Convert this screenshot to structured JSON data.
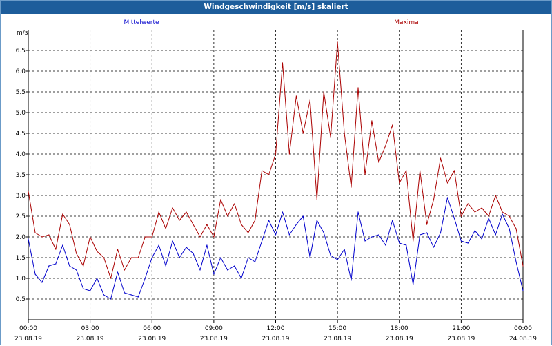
{
  "window": {
    "title": "Windgeschwindigkeit [m/s] skaliert"
  },
  "chart_data": {
    "type": "line",
    "ylabel": "m/s",
    "ylim": [
      0.0,
      7.0
    ],
    "yticks": [
      "0.5",
      "1.0",
      "1.5",
      "2.0",
      "2.5",
      "3.0",
      "3.5",
      "4.0",
      "4.5",
      "5.0",
      "5.5",
      "6.0",
      "6.5"
    ],
    "x_start": "23.08.19 00:00",
    "x_end": "24.08.19 00:00",
    "xticks": [
      {
        "time": "00:00",
        "date": "23.08.19"
      },
      {
        "time": "03:00",
        "date": "23.08.19"
      },
      {
        "time": "06:00",
        "date": "23.08.19"
      },
      {
        "time": "09:00",
        "date": "23.08.19"
      },
      {
        "time": "12:00",
        "date": "23.08.19"
      },
      {
        "time": "15:00",
        "date": "23.08.19"
      },
      {
        "time": "18:00",
        "date": "23.08.19"
      },
      {
        "time": "21:00",
        "date": "23.08.19"
      },
      {
        "time": "00:00",
        "date": "24.08.19"
      }
    ],
    "grid": true,
    "series": [
      {
        "name": "Mittelwerte",
        "color": "#0000cc",
        "x": [
          "23.08.19 00:00",
          "23.08.19 00:20",
          "23.08.19 00:40",
          "23.08.19 01:00",
          "23.08.19 01:20",
          "23.08.19 01:40",
          "23.08.19 02:00",
          "23.08.19 02:20",
          "23.08.19 02:40",
          "23.08.19 03:00",
          "23.08.19 03:20",
          "23.08.19 03:40",
          "23.08.19 04:00",
          "23.08.19 04:20",
          "23.08.19 04:40",
          "23.08.19 05:00",
          "23.08.19 05:20",
          "23.08.19 05:40",
          "23.08.19 06:00",
          "23.08.19 06:20",
          "23.08.19 06:40",
          "23.08.19 07:00",
          "23.08.19 07:20",
          "23.08.19 07:40",
          "23.08.19 08:00",
          "23.08.19 08:20",
          "23.08.19 08:40",
          "23.08.19 09:00",
          "23.08.19 09:20",
          "23.08.19 09:40",
          "23.08.19 10:00",
          "23.08.19 10:20",
          "23.08.19 10:40",
          "23.08.19 11:00",
          "23.08.19 11:20",
          "23.08.19 11:40",
          "23.08.19 12:00",
          "23.08.19 12:20",
          "23.08.19 12:40",
          "23.08.19 13:00",
          "23.08.19 13:20",
          "23.08.19 13:40",
          "23.08.19 14:00",
          "23.08.19 14:20",
          "23.08.19 14:40",
          "23.08.19 15:00",
          "23.08.19 15:20",
          "23.08.19 15:40",
          "23.08.19 16:00",
          "23.08.19 16:20",
          "23.08.19 16:40",
          "23.08.19 17:00",
          "23.08.19 17:20",
          "23.08.19 17:40",
          "23.08.19 18:00",
          "23.08.19 18:20",
          "23.08.19 18:40",
          "23.08.19 19:00",
          "23.08.19 19:20",
          "23.08.19 19:40",
          "23.08.19 20:00",
          "23.08.19 20:20",
          "23.08.19 20:40",
          "23.08.19 21:00",
          "23.08.19 21:20",
          "23.08.19 21:40",
          "23.08.19 22:00",
          "23.08.19 22:20",
          "23.08.19 22:40",
          "23.08.19 23:00",
          "23.08.19 23:20",
          "23.08.19 23:40",
          "24.08.19 00:00"
        ],
        "values": [
          1.95,
          1.1,
          0.9,
          1.3,
          1.35,
          1.8,
          1.3,
          1.2,
          0.75,
          0.7,
          1.0,
          0.6,
          0.5,
          1.15,
          0.65,
          0.6,
          0.55,
          1.0,
          1.5,
          1.8,
          1.3,
          1.9,
          1.5,
          1.75,
          1.6,
          1.2,
          1.8,
          1.1,
          1.5,
          1.2,
          1.3,
          1.0,
          1.5,
          1.4,
          1.9,
          2.4,
          2.05,
          2.6,
          2.05,
          2.3,
          2.5,
          1.5,
          2.4,
          2.1,
          1.55,
          1.45,
          1.7,
          0.95,
          2.6,
          1.9,
          2.0,
          2.05,
          1.8,
          2.4,
          1.85,
          1.8,
          0.85,
          2.05,
          2.1,
          1.75,
          2.1,
          2.95,
          2.45,
          1.9,
          1.85,
          2.15,
          1.95,
          2.45,
          2.05,
          2.55,
          2.2,
          1.4,
          0.7
        ]
      },
      {
        "name": "Maxima",
        "color": "#aa0000",
        "x": [
          "23.08.19 00:00",
          "23.08.19 00:20",
          "23.08.19 00:40",
          "23.08.19 01:00",
          "23.08.19 01:20",
          "23.08.19 01:40",
          "23.08.19 02:00",
          "23.08.19 02:20",
          "23.08.19 02:40",
          "23.08.19 03:00",
          "23.08.19 03:20",
          "23.08.19 03:40",
          "23.08.19 04:00",
          "23.08.19 04:20",
          "23.08.19 04:40",
          "23.08.19 05:00",
          "23.08.19 05:20",
          "23.08.19 05:40",
          "23.08.19 06:00",
          "23.08.19 06:20",
          "23.08.19 06:40",
          "23.08.19 07:00",
          "23.08.19 07:20",
          "23.08.19 07:40",
          "23.08.19 08:00",
          "23.08.19 08:20",
          "23.08.19 08:40",
          "23.08.19 09:00",
          "23.08.19 09:20",
          "23.08.19 09:40",
          "23.08.19 10:00",
          "23.08.19 10:20",
          "23.08.19 10:40",
          "23.08.19 11:00",
          "23.08.19 11:20",
          "23.08.19 11:40",
          "23.08.19 12:00",
          "23.08.19 12:20",
          "23.08.19 12:40",
          "23.08.19 13:00",
          "23.08.19 13:20",
          "23.08.19 13:40",
          "23.08.19 14:00",
          "23.08.19 14:20",
          "23.08.19 14:40",
          "23.08.19 15:00",
          "23.08.19 15:20",
          "23.08.19 15:40",
          "23.08.19 16:00",
          "23.08.19 16:20",
          "23.08.19 16:40",
          "23.08.19 17:00",
          "23.08.19 17:20",
          "23.08.19 17:40",
          "23.08.19 18:00",
          "23.08.19 18:20",
          "23.08.19 18:40",
          "23.08.19 19:00",
          "23.08.19 19:20",
          "23.08.19 19:40",
          "23.08.19 20:00",
          "23.08.19 20:20",
          "23.08.19 20:40",
          "23.08.19 21:00",
          "23.08.19 21:20",
          "23.08.19 21:40",
          "23.08.19 22:00",
          "23.08.19 22:20",
          "23.08.19 22:40",
          "23.08.19 23:00",
          "23.08.19 23:20",
          "23.08.19 23:40",
          "24.08.19 00:00"
        ],
        "values": [
          3.1,
          2.1,
          2.0,
          2.05,
          1.7,
          2.55,
          2.3,
          1.6,
          1.3,
          2.0,
          1.65,
          1.5,
          1.0,
          1.7,
          1.2,
          1.5,
          1.5,
          2.0,
          2.0,
          2.6,
          2.2,
          2.7,
          2.4,
          2.6,
          2.3,
          2.0,
          2.3,
          2.0,
          2.9,
          2.5,
          2.8,
          2.3,
          2.1,
          2.4,
          3.6,
          3.5,
          4.0,
          6.2,
          4.0,
          5.4,
          4.5,
          5.3,
          2.9,
          5.5,
          4.4,
          6.7,
          4.5,
          3.2,
          5.6,
          3.5,
          4.8,
          3.8,
          4.2,
          4.7,
          3.3,
          3.6,
          1.9,
          3.6,
          2.3,
          2.9,
          3.9,
          3.3,
          3.6,
          2.5,
          2.8,
          2.6,
          2.7,
          2.5,
          3.0,
          2.6,
          2.5,
          2.2,
          1.3
        ]
      }
    ]
  }
}
